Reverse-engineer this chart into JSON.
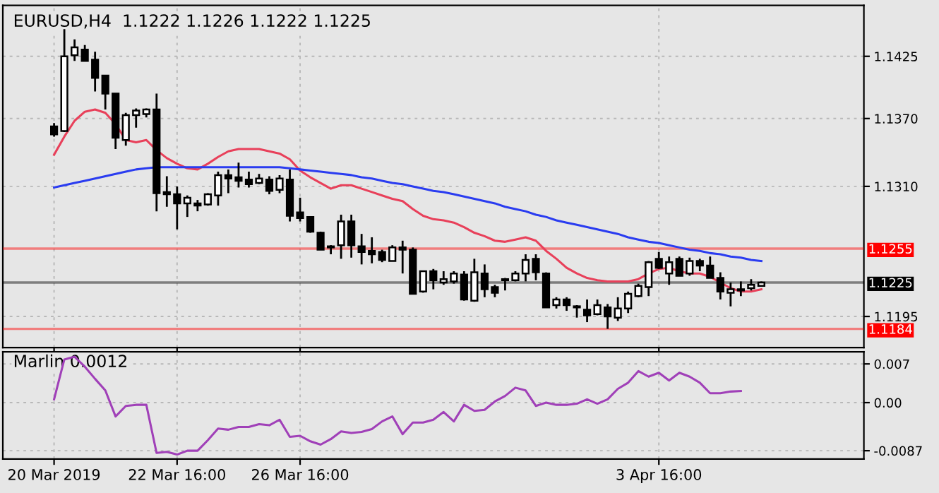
{
  "chart_data": [
    {
      "type": "candlestick",
      "title": "EURUSD,H4  1.1222 1.1226 1.1222 1.1225",
      "categories": [
        null,
        null,
        null,
        null,
        null,
        null,
        null,
        null,
        null,
        null,
        null,
        null,
        null,
        null,
        null,
        null,
        null,
        null,
        null,
        null,
        null,
        null,
        null,
        null,
        null,
        null,
        null,
        null,
        null,
        null,
        null,
        null,
        null,
        null,
        null,
        null,
        null,
        null,
        null,
        null,
        null,
        null,
        null,
        null,
        null,
        null,
        null,
        null,
        null,
        null,
        null,
        null,
        null,
        null,
        null,
        null,
        null,
        null,
        null,
        null,
        null,
        null,
        null,
        null,
        null,
        null,
        null,
        null,
        null,
        null
      ],
      "ohlc": [
        [
          1.1363,
          1.1366,
          1.1354,
          1.1356
        ],
        [
          1.1359,
          1.1449,
          1.1358,
          1.1425
        ],
        [
          1.1426,
          1.144,
          1.1421,
          1.1433
        ],
        [
          1.1431,
          1.1435,
          1.1421,
          1.1421
        ],
        [
          1.1422,
          1.1429,
          1.1394,
          1.1406
        ],
        [
          1.1408,
          1.1408,
          1.1378,
          1.1392
        ],
        [
          1.1392,
          1.1392,
          1.1343,
          1.1353
        ],
        [
          1.1351,
          1.1375,
          1.1346,
          1.1373
        ],
        [
          1.1373,
          1.1379,
          1.1362,
          1.1377
        ],
        [
          1.1374,
          1.1379,
          1.1371,
          1.1378
        ],
        [
          1.1378,
          1.1392,
          1.1288,
          1.1304
        ],
        [
          1.1305,
          1.1319,
          1.1292,
          1.1303
        ],
        [
          1.1303,
          1.131,
          1.1272,
          1.1295
        ],
        [
          1.1295,
          1.1302,
          1.1283,
          1.13
        ],
        [
          1.1295,
          1.1298,
          1.1288,
          1.1293
        ],
        [
          1.1294,
          1.1304,
          1.1293,
          1.1303
        ],
        [
          1.1302,
          1.1323,
          1.1293,
          1.132
        ],
        [
          1.132,
          1.1325,
          1.1304,
          1.1317
        ],
        [
          1.1318,
          1.1331,
          1.1309,
          1.1315
        ],
        [
          1.1316,
          1.1323,
          1.1309,
          1.1312
        ],
        [
          1.1313,
          1.1321,
          1.1312,
          1.1317
        ],
        [
          1.1316,
          1.1319,
          1.1303,
          1.1306
        ],
        [
          1.1307,
          1.132,
          1.1304,
          1.1317
        ],
        [
          1.1316,
          1.1325,
          1.1279,
          1.1284
        ],
        [
          1.1287,
          1.13,
          1.1279,
          1.1282
        ],
        [
          1.1283,
          1.1283,
          1.1269,
          1.127
        ],
        [
          1.1269,
          1.127,
          1.1254,
          1.1254
        ],
        [
          1.1257,
          1.1258,
          1.125,
          1.1256
        ],
        [
          1.1258,
          1.1285,
          1.1246,
          1.1279
        ],
        [
          1.1279,
          1.1285,
          1.1247,
          1.1258
        ],
        [
          1.1257,
          1.1268,
          1.1241,
          1.1252
        ],
        [
          1.1253,
          1.1265,
          1.1242,
          1.125
        ],
        [
          1.1252,
          1.1254,
          1.1243,
          1.1245
        ],
        [
          1.1244,
          1.1258,
          1.1244,
          1.1256
        ],
        [
          1.1256,
          1.1262,
          1.1233,
          1.1254
        ],
        [
          1.1254,
          1.1256,
          1.1215,
          1.1215
        ],
        [
          1.1217,
          1.1235,
          1.1216,
          1.1235
        ],
        [
          1.1235,
          1.1237,
          1.1219,
          1.1227
        ],
        [
          1.1225,
          1.1235,
          1.1223,
          1.1228
        ],
        [
          1.1226,
          1.1235,
          1.1224,
          1.1233
        ],
        [
          1.1232,
          1.1235,
          1.1209,
          1.121
        ],
        [
          1.1209,
          1.1246,
          1.1208,
          1.1234
        ],
        [
          1.1233,
          1.1241,
          1.1212,
          1.1219
        ],
        [
          1.1221,
          1.1223,
          1.1212,
          1.1216
        ],
        [
          1.1228,
          1.1229,
          1.1218,
          1.1227
        ],
        [
          1.1227,
          1.1235,
          1.1226,
          1.1233
        ],
        [
          1.1233,
          1.125,
          1.1226,
          1.1245
        ],
        [
          1.1246,
          1.125,
          1.1227,
          1.1234
        ],
        [
          1.1233,
          1.1234,
          1.1203,
          1.1203
        ],
        [
          1.1205,
          1.1212,
          1.1202,
          1.121
        ],
        [
          1.121,
          1.1212,
          1.12,
          1.1205
        ],
        [
          1.1204,
          1.1205,
          1.1194,
          1.1203
        ],
        [
          1.1201,
          1.121,
          1.119,
          1.1196
        ],
        [
          1.1197,
          1.121,
          1.1196,
          1.1205
        ],
        [
          1.1203,
          1.1206,
          1.1184,
          1.1195
        ],
        [
          1.1194,
          1.1212,
          1.1191,
          1.1202
        ],
        [
          1.1202,
          1.1217,
          1.1198,
          1.1215
        ],
        [
          1.1213,
          1.1224,
          1.1212,
          1.1222
        ],
        [
          1.1221,
          1.1244,
          1.1213,
          1.1243
        ],
        [
          1.1246,
          1.1252,
          1.1237,
          1.1238
        ],
        [
          1.1233,
          1.1248,
          1.1223,
          1.1243
        ],
        [
          1.1246,
          1.1248,
          1.1231,
          1.1231
        ],
        [
          1.1233,
          1.1247,
          1.1231,
          1.1244
        ],
        [
          1.1244,
          1.1246,
          1.1235,
          1.124
        ],
        [
          1.124,
          1.1248,
          1.1229,
          1.1229
        ],
        [
          1.1229,
          1.1234,
          1.121,
          1.1217
        ],
        [
          1.1216,
          1.1225,
          1.1204,
          1.1219
        ],
        [
          1.1218,
          1.1226,
          1.1213,
          1.1219
        ],
        [
          1.122,
          1.1228,
          1.1218,
          1.1223
        ],
        [
          1.1222,
          1.1226,
          1.1222,
          1.1225
        ]
      ],
      "series": [
        {
          "type": "line",
          "color": "#e8405a",
          "values": [
            1.1338,
            1.1354,
            1.1368,
            1.1376,
            1.1378,
            1.1375,
            1.1365,
            1.1351,
            1.1349,
            1.1351,
            1.1342,
            1.1335,
            1.133,
            1.1326,
            1.1325,
            1.133,
            1.1336,
            1.1341,
            1.1343,
            1.1343,
            1.1343,
            1.1341,
            1.1339,
            1.1334,
            1.1324,
            1.1318,
            1.1313,
            1.1308,
            1.1311,
            1.1311,
            1.1308,
            1.1305,
            1.1302,
            1.1299,
            1.1297,
            1.129,
            1.1284,
            1.1281,
            1.128,
            1.1278,
            1.1274,
            1.1269,
            1.1266,
            1.1262,
            1.1261,
            1.1263,
            1.1265,
            1.1262,
            1.1253,
            1.1246,
            1.1238,
            1.1233,
            1.1229,
            1.1227,
            1.1226,
            1.1226,
            1.1226,
            1.1228,
            1.1233,
            1.1237,
            1.1238,
            1.1235,
            1.1233,
            1.1233,
            1.123,
            1.1225,
            1.122,
            1.1217,
            1.1217,
            1.1219
          ]
        },
        {
          "type": "line",
          "color": "#2a3cf0",
          "values": [
            1.1309,
            1.1311,
            1.1313,
            1.1315,
            1.1317,
            1.1319,
            1.1321,
            1.1323,
            1.1325,
            1.1326,
            1.1327,
            1.1327,
            1.1327,
            1.1327,
            1.1327,
            1.1327,
            1.1327,
            1.1327,
            1.1327,
            1.1327,
            1.1327,
            1.1327,
            1.1327,
            1.1326,
            1.1325,
            1.1324,
            1.1323,
            1.1322,
            1.1321,
            1.132,
            1.1318,
            1.1317,
            1.1315,
            1.1313,
            1.1312,
            1.131,
            1.1308,
            1.1306,
            1.1305,
            1.1303,
            1.1301,
            1.1299,
            1.1297,
            1.1295,
            1.1292,
            1.129,
            1.1288,
            1.1285,
            1.1283,
            1.128,
            1.1278,
            1.1276,
            1.1274,
            1.1272,
            1.127,
            1.1268,
            1.1265,
            1.1263,
            1.1261,
            1.126,
            1.1258,
            1.1256,
            1.1254,
            1.1253,
            1.1251,
            1.125,
            1.1248,
            1.1247,
            1.1245,
            1.1244
          ]
        }
      ],
      "ylim": [
        1.11675,
        1.147
      ],
      "yticks": [
        1.1425,
        {
          "value": 1.137,
          "label": "1.1370"
        },
        {
          "value": 1.131,
          "label": "1.1310"
        },
        1.1195
      ],
      "ref_lines": [
        {
          "axis": "y",
          "value": 1.1255,
          "label": "1.1255",
          "color": "#ff0000"
        },
        {
          "axis": "y",
          "value": 1.1184,
          "label": "1.1184",
          "color": "#ff0000"
        },
        {
          "axis": "y",
          "value": 1.1225,
          "label": "1.1225",
          "color": "#000000"
        }
      ],
      "grid": true,
      "tick_labels": "y"
    },
    {
      "type": "line",
      "title": "Marlin 0.0012",
      "categories": [
        "20 Mar 2019",
        null,
        null,
        null,
        null,
        null,
        null,
        null,
        null,
        null,
        null,
        null,
        "22 Mar 16:00",
        null,
        null,
        null,
        null,
        null,
        null,
        null,
        null,
        null,
        null,
        null,
        "26 Mar 16:00",
        null,
        null,
        null,
        null,
        null,
        null,
        null,
        null,
        null,
        null,
        null,
        null,
        null,
        null,
        null,
        null,
        null,
        null,
        null,
        null,
        null,
        null,
        null,
        null,
        null,
        null,
        null,
        null,
        null,
        null,
        null,
        null,
        null,
        null,
        "3 Apr 16:00",
        null,
        null,
        null,
        null,
        null,
        null,
        null,
        null,
        null,
        null
      ],
      "series": [
        {
          "color": "#a040b8",
          "values": [
            0.0006,
            0.0078,
            0.0083,
            0.0065,
            0.0043,
            0.0022,
            -0.0025,
            -0.0006,
            -0.0004,
            -0.0004,
            -0.0091,
            -0.0089,
            -0.0094,
            -0.0087,
            -0.0087,
            -0.0068,
            -0.0047,
            -0.0049,
            -0.0044,
            -0.0044,
            -0.0039,
            -0.0041,
            -0.0031,
            -0.0062,
            -0.006,
            -0.007,
            -0.0076,
            -0.0066,
            -0.0052,
            -0.0055,
            -0.0053,
            -0.0048,
            -0.0034,
            -0.0025,
            -0.0057,
            -0.0036,
            -0.0036,
            -0.0031,
            -0.0017,
            -0.0034,
            -0.0004,
            -0.0015,
            -0.0013,
            0.0002,
            0.0012,
            0.0027,
            0.0022,
            -0.0006,
            0.0,
            -0.0004,
            -0.0004,
            -0.0002,
            0.0006,
            -0.0002,
            0.0006,
            0.0025,
            0.0036,
            0.0057,
            0.0047,
            0.0054,
            0.004,
            0.0054,
            0.0047,
            0.0036,
            0.0017,
            0.0017,
            0.002,
            0.0021,
            null,
            null
          ]
        }
      ],
      "ylim": [
        -0.0102,
        0.0092
      ],
      "yticks": [
        0.007,
        {
          "value": 0,
          "label": "0.00"
        },
        -0.0087
      ],
      "grid": true
    }
  ]
}
